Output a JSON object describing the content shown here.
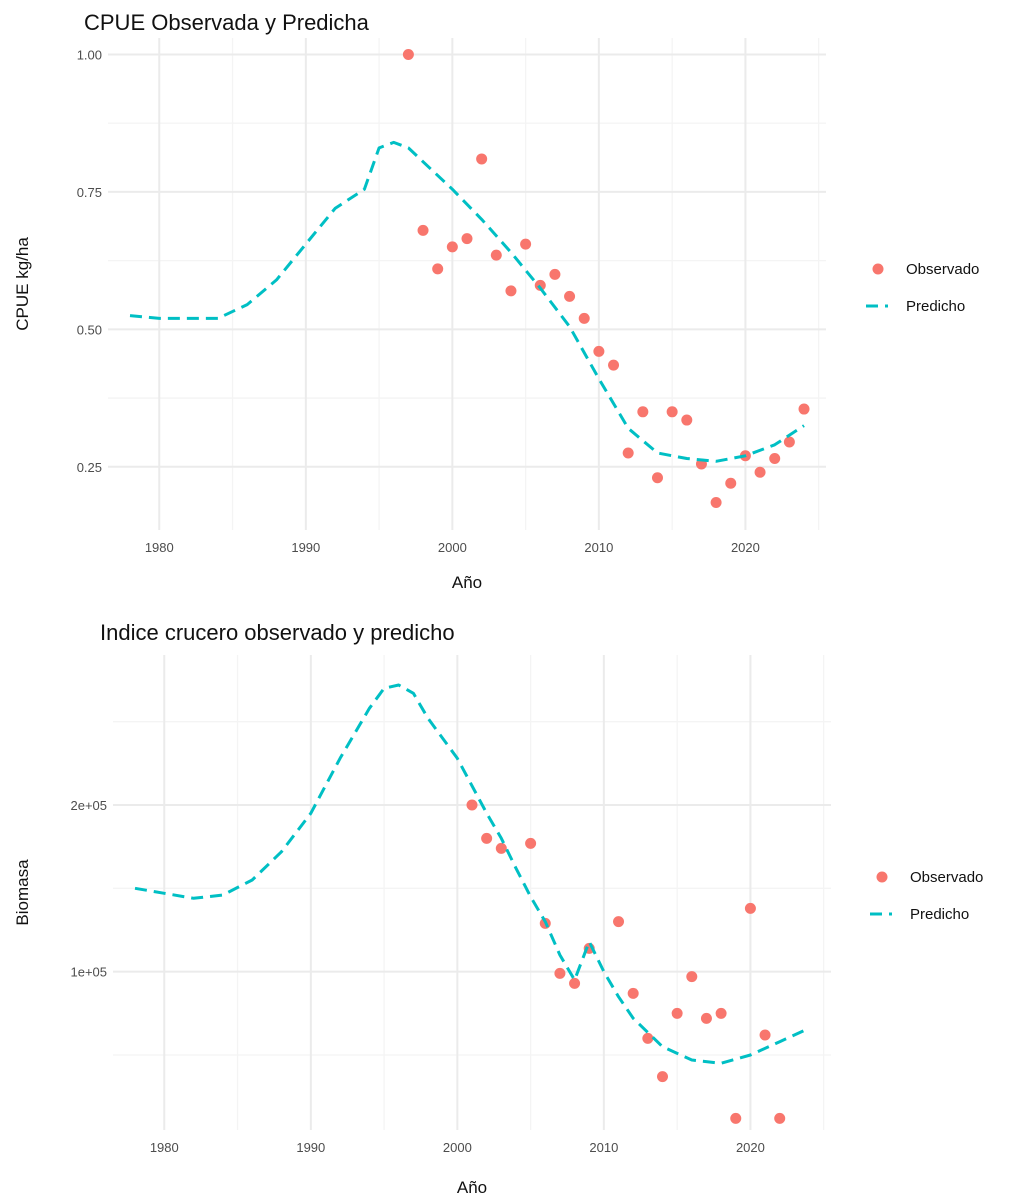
{
  "colors": {
    "observed": "#f8766d",
    "predicted": "#00bfc4"
  },
  "chart_data": [
    {
      "type": "line",
      "title": "CPUE Observada y Predicha",
      "xlabel": "Año",
      "ylabel": "CPUE kg/ha",
      "xlim": [
        1976.5,
        2025.5
      ],
      "ylim": [
        0.135,
        1.03
      ],
      "x_ticks": [
        1980,
        1990,
        2000,
        2010,
        2020
      ],
      "x_tick_labels": [
        "1980",
        "1990",
        "2000",
        "2010",
        "2020"
      ],
      "y_ticks": [
        0.25,
        0.5,
        0.75,
        1.0
      ],
      "y_tick_labels": [
        "0.25",
        "0.50",
        "0.75",
        "1.00"
      ],
      "y_minor": [
        0.375,
        0.625,
        0.875
      ],
      "grid": true,
      "legend": "right",
      "series": [
        {
          "name": "Observado",
          "kind": "points",
          "x": [
            1997,
            1998,
            1999,
            2000,
            2001,
            2002,
            2003,
            2004,
            2005,
            2006,
            2007,
            2008,
            2009,
            2010,
            2011,
            2012,
            2013,
            2014,
            2015,
            2016,
            2017,
            2018,
            2019,
            2020,
            2021,
            2022,
            2023,
            2024
          ],
          "y": [
            1.0,
            0.68,
            0.61,
            0.65,
            0.665,
            0.81,
            0.635,
            0.57,
            0.655,
            0.58,
            0.6,
            0.56,
            0.52,
            0.46,
            0.435,
            0.275,
            0.35,
            0.23,
            0.35,
            0.335,
            0.255,
            0.185,
            0.22,
            0.27,
            0.24,
            0.265,
            0.295,
            0.355
          ]
        },
        {
          "name": "Predicho",
          "kind": "dashed-line",
          "x": [
            1978,
            1980,
            1982,
            1984,
            1986,
            1988,
            1990,
            1992,
            1994,
            1995,
            1996,
            1997,
            1998,
            2000,
            2002,
            2004,
            2006,
            2008,
            2010,
            2012,
            2014,
            2016,
            2018,
            2020,
            2022,
            2024
          ],
          "y": [
            0.525,
            0.52,
            0.52,
            0.52,
            0.545,
            0.59,
            0.655,
            0.72,
            0.755,
            0.83,
            0.84,
            0.83,
            0.805,
            0.755,
            0.7,
            0.64,
            0.575,
            0.505,
            0.41,
            0.32,
            0.275,
            0.265,
            0.26,
            0.27,
            0.29,
            0.325
          ]
        }
      ]
    },
    {
      "type": "line",
      "title": "Indice crucero observado y predicho",
      "xlabel": "Año",
      "ylabel": "Biomasa",
      "xlim": [
        1976.5,
        2025.5
      ],
      "ylim": [
        5000,
        290000
      ],
      "x_ticks": [
        1980,
        1990,
        2000,
        2010,
        2020
      ],
      "x_tick_labels": [
        "1980",
        "1990",
        "2000",
        "2010",
        "2020"
      ],
      "y_ticks": [
        100000,
        200000
      ],
      "y_tick_labels": [
        "1e+05",
        "2e+05"
      ],
      "y_minor": [
        50000,
        150000,
        250000
      ],
      "grid": true,
      "legend": "right",
      "series": [
        {
          "name": "Observado",
          "kind": "points",
          "x": [
            2001,
            2002,
            2003,
            2005,
            2006,
            2007,
            2008,
            2009,
            2011,
            2012,
            2013,
            2014,
            2015,
            2016,
            2017,
            2018,
            2019,
            2020,
            2021,
            2022
          ],
          "y": [
            200000,
            180000,
            174000,
            177000,
            129000,
            99000,
            93000,
            114000,
            130000,
            87000,
            60000,
            37000,
            75000,
            97000,
            72000,
            75000,
            12000,
            138000,
            62000,
            12000
          ]
        },
        {
          "name": "Predicho",
          "kind": "dashed-line",
          "x": [
            1978,
            1980,
            1982,
            1984,
            1986,
            1988,
            1990,
            1992,
            1994,
            1995,
            1996,
            1997,
            1998,
            2000,
            2002,
            2003,
            2004,
            2005,
            2006,
            2007,
            2008,
            2009,
            2010,
            2011,
            2012,
            2014,
            2016,
            2018,
            2020,
            2022,
            2024
          ],
          "y": [
            150000,
            147000,
            144000,
            146000,
            155000,
            172000,
            195000,
            228000,
            258000,
            270000,
            272000,
            267000,
            252000,
            228000,
            195000,
            180000,
            162000,
            145000,
            130000,
            110000,
            95000,
            118000,
            100000,
            85000,
            72000,
            55000,
            47000,
            45000,
            50000,
            58000,
            66000
          ]
        }
      ]
    }
  ]
}
